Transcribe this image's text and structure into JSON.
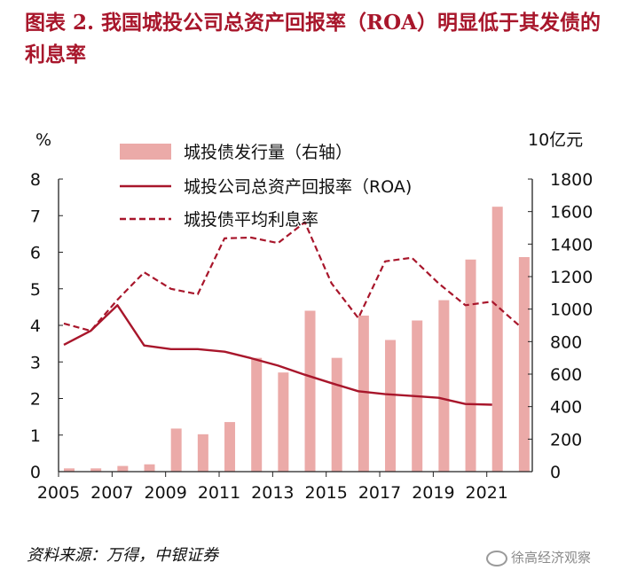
{
  "header": {
    "title": "图表 2.  我国城投公司总资产回报率（ROA）明显低于其发债的利息率"
  },
  "footer": {
    "source": "资料来源：万得，中银证券",
    "watermark": "徐高经济观察"
  },
  "colors": {
    "title": "#a8162b",
    "bar": "#ebaaa8",
    "line": "#a8162b"
  },
  "chart_data": {
    "type": "bar+line",
    "left_axis_unit": "%",
    "right_axis_unit": "10亿元",
    "left_ylim": [
      0,
      8
    ],
    "right_ylim": [
      0,
      1800
    ],
    "left_ticks": [
      "0",
      "1",
      "2",
      "3",
      "4",
      "5",
      "6",
      "7",
      "8"
    ],
    "right_ticks": [
      "0",
      "200",
      "400",
      "600",
      "800",
      "1000",
      "1200",
      "1400",
      "1600",
      "1800"
    ],
    "x_ticks": [
      "2005",
      "2007",
      "2009",
      "2011",
      "2013",
      "2015",
      "2017",
      "2019",
      "2021"
    ],
    "categories": [
      "2005",
      "2006",
      "2007",
      "2008",
      "2009",
      "2010",
      "2011",
      "2012",
      "2013",
      "2014",
      "2015",
      "2016",
      "2017",
      "2018",
      "2019",
      "2020",
      "2021",
      "2022"
    ],
    "series": [
      {
        "name": "城投债发行量（右轴）",
        "type": "bar",
        "axis": "right",
        "values": [
          20,
          20,
          35,
          45,
          265,
          230,
          305,
          700,
          610,
          990,
          700,
          960,
          810,
          930,
          1055,
          1305,
          1630,
          1320
        ]
      },
      {
        "name": "城投公司总资产回报率（ROA)",
        "type": "line",
        "style": "solid",
        "axis": "left",
        "x": [
          2005,
          2006,
          2007,
          2008,
          2009,
          2010,
          2011,
          2012,
          2013,
          2014,
          2015,
          2016,
          2017,
          2018,
          2019,
          2020,
          2021
        ],
        "values": [
          3.47,
          3.85,
          4.55,
          3.45,
          3.35,
          3.35,
          3.28,
          3.1,
          2.9,
          2.65,
          2.42,
          2.2,
          2.12,
          2.07,
          2.02,
          1.85,
          1.83
        ]
      },
      {
        "name": "城投债平均利息率",
        "type": "line",
        "style": "dashed",
        "axis": "left",
        "x": [
          2005,
          2006,
          2007,
          2008,
          2009,
          2010,
          2011,
          2012,
          2013,
          2014,
          2015,
          2016,
          2017,
          2018,
          2019,
          2020,
          2021,
          2022
        ],
        "values": [
          4.05,
          3.85,
          4.7,
          5.45,
          5.0,
          4.85,
          6.38,
          6.4,
          6.25,
          6.82,
          5.15,
          4.2,
          5.75,
          5.85,
          5.15,
          4.55,
          4.65,
          4.0
        ]
      }
    ],
    "legend_placement": "top-left"
  }
}
